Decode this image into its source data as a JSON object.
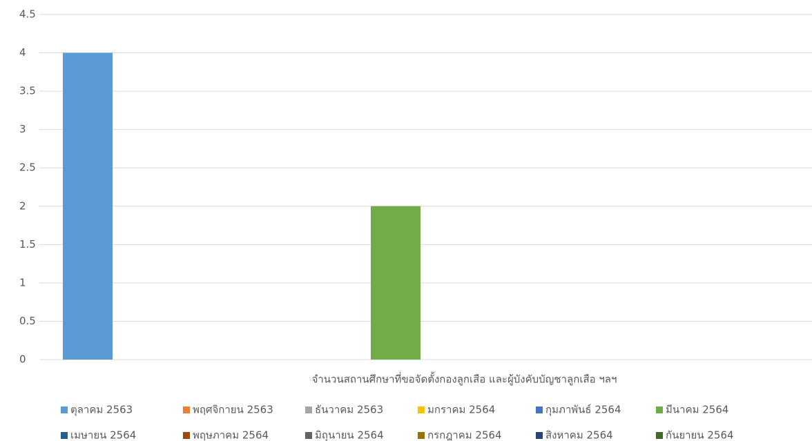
{
  "chart_data": {
    "type": "bar",
    "categories": [
      "จำนวนสถานศึกษาที่ขอจัดตั้งกองลูกเสือ และผู้บังคับบัญชาลูกเสือ ฯลฯ"
    ],
    "series": [
      {
        "name": "ตุลาคม 2563",
        "color": "#5b9bd5",
        "values": [
          4
        ]
      },
      {
        "name": "พฤศจิกายน 2563",
        "color": "#ed7d31",
        "values": [
          0
        ]
      },
      {
        "name": "ธันวาคม 2563",
        "color": "#a5a5a5",
        "values": [
          0
        ]
      },
      {
        "name": "มกราคม 2564",
        "color": "#ffc000",
        "values": [
          0
        ]
      },
      {
        "name": "กุมภาพันธ์ 2564",
        "color": "#4472c4",
        "values": [
          0
        ]
      },
      {
        "name": "มีนาคม 2564",
        "color": "#70ad47",
        "values": [
          2
        ]
      },
      {
        "name": "เมษายน 2564",
        "color": "#255e91",
        "values": [
          0
        ]
      },
      {
        "name": "พฤษภาคม 2564",
        "color": "#9e480e",
        "values": [
          0
        ]
      },
      {
        "name": "มิถุนายน 2564",
        "color": "#636363",
        "values": [
          0
        ]
      },
      {
        "name": "กรกฎาคม 2564",
        "color": "#997300",
        "values": [
          0
        ]
      },
      {
        "name": "สิงหาคม 2564",
        "color": "#264478",
        "values": [
          0
        ]
      },
      {
        "name": "กันยายน 2564",
        "color": "#43682b",
        "values": [
          0
        ]
      }
    ],
    "ylim": [
      0,
      4.5
    ],
    "yticks": [
      0,
      0.5,
      1,
      1.5,
      2,
      2.5,
      3,
      3.5,
      4,
      4.5
    ],
    "grid": true,
    "legend": "bottom"
  }
}
